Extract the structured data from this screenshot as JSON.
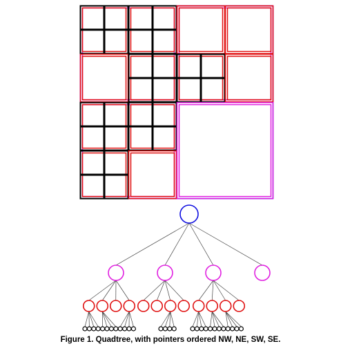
{
  "figure": {
    "caption": "Figure 1. Quadtree, with pointers ordered NW, NE, SW, SE.",
    "child_order": [
      "NW",
      "NE",
      "SW",
      "SE"
    ],
    "colors": {
      "root": "#1010e0",
      "level1": "#e020e0",
      "level2": "#e01010",
      "level3": "#000000",
      "edge": "#444444"
    },
    "quadtree": {
      "children": [
        {
          "children": [
            {
              "children": [
                {},
                {},
                {},
                {}
              ]
            },
            {
              "children": [
                {},
                {},
                {},
                {}
              ]
            },
            {},
            {
              "children": [
                {},
                {},
                {},
                {}
              ]
            }
          ]
        },
        {
          "children": [
            {},
            {},
            {
              "children": [
                {},
                {},
                {},
                {}
              ]
            },
            {}
          ]
        },
        {
          "children": [
            {
              "children": [
                {},
                {},
                {},
                {}
              ]
            },
            {
              "children": [
                {},
                {},
                {},
                {}
              ]
            },
            {
              "children": [
                {},
                {},
                {},
                {}
              ]
            },
            {}
          ]
        },
        {}
      ]
    }
  }
}
